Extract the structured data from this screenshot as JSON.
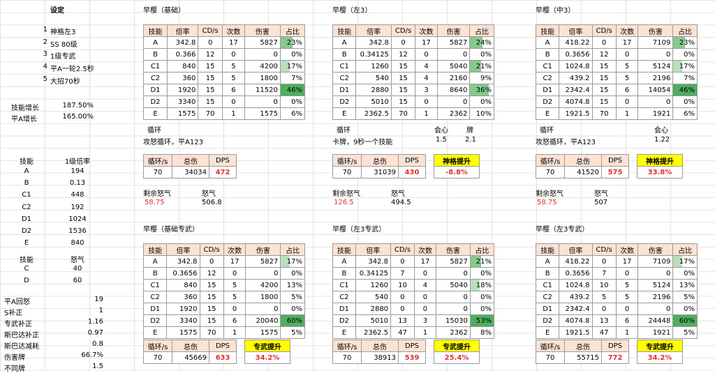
{
  "left": {
    "heading": "设定",
    "settings": [
      {
        "n": "1",
        "t": "神格左3"
      },
      {
        "n": "2",
        "t": "SS 80级"
      },
      {
        "n": "3",
        "t": "1级专武"
      },
      {
        "n": "4",
        "t": "平A一轮2.5秒"
      },
      {
        "n": "5",
        "t": "大招70秒"
      }
    ],
    "growth": [
      {
        "l": "技能增长",
        "v": "187.50%"
      },
      {
        "l": "平A增长",
        "v": "165.00%"
      }
    ],
    "skill_hdr": {
      "a": "技能",
      "b": "1级倍率"
    },
    "skills": [
      {
        "k": "A",
        "v": "194"
      },
      {
        "k": "B",
        "v": "0.13"
      },
      {
        "k": "C1",
        "v": "448"
      },
      {
        "k": "C2",
        "v": "192"
      },
      {
        "k": "D1",
        "v": "1024"
      },
      {
        "k": "D2",
        "v": "1536"
      },
      {
        "k": "E",
        "v": "840"
      }
    ],
    "rage_hdr": {
      "a": "技能",
      "b": "怒气"
    },
    "rage": [
      {
        "k": "C",
        "v": "40"
      },
      {
        "k": "D",
        "v": "60"
      }
    ],
    "params": [
      {
        "l": "平A回怒",
        "v": "19"
      },
      {
        "l": "S补正",
        "v": "1"
      },
      {
        "l": "专武补正",
        "v": "1.16"
      },
      {
        "l": "斯巴达补正",
        "v": "0.97"
      },
      {
        "l": "斯巴达减耗",
        "v": "0.8"
      },
      {
        "l": "伤害牌",
        "v": "66.7%"
      },
      {
        "l": "不同牌",
        "v": "1.5"
      }
    ]
  },
  "headers": [
    "技能",
    "倍率",
    "CD/s",
    "次数",
    "伤害",
    "占比"
  ],
  "sum_headers": [
    "循环/s",
    "总伤",
    "DPS"
  ],
  "rage_labels": {
    "remain": "剩余怒气",
    "rage": "怒气"
  },
  "panels": [
    {
      "title": "早樱（基础）",
      "rows": [
        [
          "A",
          "342.8",
          "0",
          "17",
          "5827",
          "23%",
          23
        ],
        [
          "B",
          "0.366",
          "12",
          "0",
          "0",
          "0%",
          0
        ],
        [
          "C1",
          "840",
          "15",
          "5",
          "4200",
          "17%",
          17
        ],
        [
          "C2",
          "360",
          "15",
          "5",
          "1800",
          "7%",
          7
        ],
        [
          "D1",
          "1920",
          "15",
          "6",
          "11520",
          "46%",
          46
        ],
        [
          "D2",
          "3340",
          "15",
          "0",
          "0",
          "0%",
          0
        ],
        [
          "E",
          "1575",
          "70",
          "1",
          "1575",
          "6%",
          6
        ]
      ],
      "cycle_label": "循环",
      "cycle_text": "攻怒循环，平A123",
      "sum": [
        "70",
        "34034",
        "472"
      ],
      "remain": "58.75",
      "rage": "506.8"
    },
    {
      "title": "早樱（左3）",
      "rows": [
        [
          "A",
          "342.8",
          "0",
          "17",
          "5827",
          "24%",
          24
        ],
        [
          "B",
          "0.34125",
          "12",
          "0",
          "0",
          "0%",
          0
        ],
        [
          "C1",
          "1260",
          "15",
          "4",
          "5040",
          "21%",
          21
        ],
        [
          "C2",
          "540",
          "15",
          "4",
          "2160",
          "9%",
          9
        ],
        [
          "D1",
          "2880",
          "15",
          "3",
          "8640",
          "36%",
          36
        ],
        [
          "D2",
          "5010",
          "15",
          "0",
          "0",
          "0%",
          0
        ],
        [
          "E",
          "2362.5",
          "70",
          "1",
          "2362",
          "10%",
          10
        ]
      ],
      "cycle_label": "循环",
      "cycle_text": "卡牌，9秒一个技能",
      "extra": {
        "crit_label": "会心",
        "crit": "1.5",
        "card_label": "牌",
        "card": "2.1"
      },
      "sum": [
        "70",
        "31039",
        "430"
      ],
      "lift_label": "神格提升",
      "lift": "-8.8%",
      "remain": "126.5",
      "rage": "494.5"
    },
    {
      "title": "早樱（中3）",
      "rows": [
        [
          "A",
          "418.22",
          "0",
          "17",
          "7109",
          "23%",
          23
        ],
        [
          "B",
          "0.3656",
          "12",
          "0",
          "0",
          "0%",
          0
        ],
        [
          "C1",
          "1024.8",
          "15",
          "5",
          "5124",
          "17%",
          17
        ],
        [
          "C2",
          "439.2",
          "15",
          "5",
          "2196",
          "7%",
          7
        ],
        [
          "D1",
          "2342.4",
          "15",
          "6",
          "14054",
          "46%",
          46
        ],
        [
          "D2",
          "4074.8",
          "15",
          "0",
          "0",
          "0%",
          0
        ],
        [
          "E",
          "1921.5",
          "70",
          "1",
          "1921",
          "6%",
          6
        ]
      ],
      "cycle_label": "循环",
      "cycle_text": "攻怒循环，平A123",
      "extra": {
        "crit_label": "会心",
        "crit": "1.22"
      },
      "sum": [
        "70",
        "41520",
        "575"
      ],
      "lift_label": "神格提升",
      "lift": "33.8%",
      "remain": "58.75",
      "rage": "507"
    },
    {
      "title": "早樱（基础专武）",
      "rows": [
        [
          "A",
          "342.8",
          "0",
          "17",
          "5827",
          "17%",
          17
        ],
        [
          "B",
          "0.3656",
          "12",
          "0",
          "0",
          "0%",
          0
        ],
        [
          "C1",
          "840",
          "15",
          "5",
          "4200",
          "13%",
          13
        ],
        [
          "C2",
          "360",
          "15",
          "5",
          "1800",
          "5%",
          5
        ],
        [
          "D1",
          "1920",
          "15",
          "0",
          "0",
          "0%",
          0
        ],
        [
          "D2",
          "3340",
          "15",
          "6",
          "20040",
          "60%",
          60
        ],
        [
          "E",
          "1575",
          "70",
          "1",
          "1575",
          "5%",
          5
        ]
      ],
      "sum": [
        "70",
        "45669",
        "633"
      ],
      "lift_label": "专武提升",
      "lift": "34.2%"
    },
    {
      "title": "早樱（左3专武）",
      "rows": [
        [
          "A",
          "342.8",
          "0",
          "17",
          "5827",
          "21%",
          21
        ],
        [
          "B",
          "0.34125",
          "7",
          "0",
          "0",
          "0%",
          0
        ],
        [
          "C1",
          "1260",
          "10",
          "4",
          "5040",
          "18%",
          18
        ],
        [
          "C2",
          "540",
          "0",
          "0",
          "0",
          "0%",
          0
        ],
        [
          "D1",
          "2880",
          "0",
          "0",
          "0",
          "0%",
          0
        ],
        [
          "D2",
          "5010",
          "13",
          "3",
          "15030",
          "53%",
          53
        ],
        [
          "E",
          "2362.5",
          "47",
          "1",
          "2362",
          "8%",
          8
        ]
      ],
      "sum": [
        "70",
        "38913",
        "539"
      ],
      "lift_label": "专武提升",
      "lift": "25.4%"
    },
    {
      "title": "早樱（左3专武）",
      "rows": [
        [
          "A",
          "418.22",
          "0",
          "17",
          "7109",
          "17%",
          17
        ],
        [
          "B",
          "0.3656",
          "7",
          "0",
          "0",
          "0%",
          0
        ],
        [
          "C1",
          "1024.8",
          "10",
          "5",
          "5124",
          "13%",
          13
        ],
        [
          "C2",
          "439.2",
          "5",
          "5",
          "2196",
          "5%",
          5
        ],
        [
          "D1",
          "2342.4",
          "0",
          "0",
          "0",
          "0%",
          0
        ],
        [
          "D2",
          "4074.8",
          "13",
          "6",
          "24448",
          "60%",
          60
        ],
        [
          "E",
          "1921.5",
          "47",
          "1",
          "1921",
          "5%",
          5
        ]
      ],
      "sum": [
        "70",
        "55715",
        "772"
      ],
      "lift_label": "专武提升",
      "lift": "34.2%"
    }
  ]
}
